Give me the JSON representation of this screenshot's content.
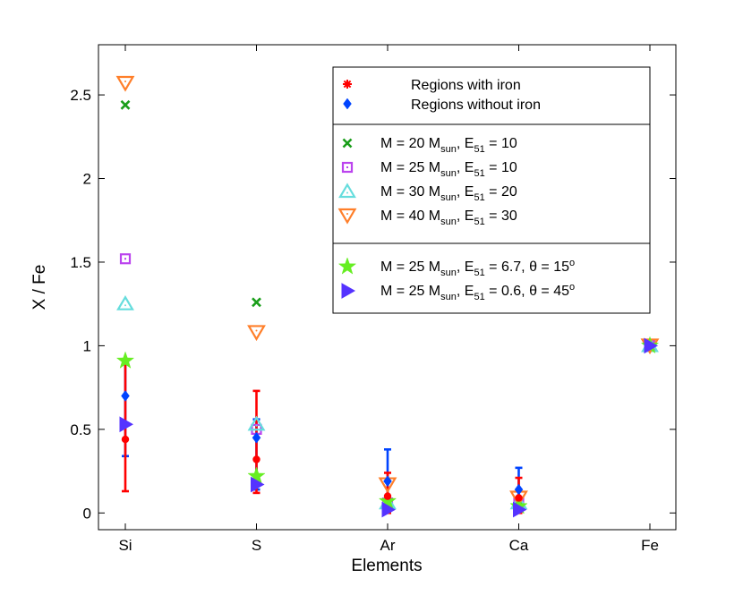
{
  "chart_data": {
    "type": "scatter",
    "title": "",
    "xlabel": "Elements",
    "ylabel": "X / Fe",
    "categories": [
      "Si",
      "S",
      "Ar",
      "Ca",
      "Fe"
    ],
    "ylim": [
      -0.1,
      2.8
    ],
    "yticks": [
      0,
      0.5,
      1,
      1.5,
      2,
      2.5
    ],
    "ytick_labels": [
      "0",
      "0.5",
      "1",
      "1.5",
      "2",
      "2.5"
    ],
    "grid": false,
    "legend_position": "top-right",
    "observations": [
      {
        "name": "Regions with iron",
        "color": "#ff0000",
        "marker": "dot",
        "points": [
          {
            "category": "Si",
            "value": 0.44,
            "low": 0.13,
            "high": 0.92
          },
          {
            "category": "S",
            "value": 0.32,
            "low": 0.12,
            "high": 0.73
          },
          {
            "category": "Ar",
            "value": 0.1,
            "low": 0.0,
            "high": 0.24
          },
          {
            "category": "Ca",
            "value": 0.09,
            "low": 0.0,
            "high": 0.21
          }
        ]
      },
      {
        "name": "Regions without iron",
        "color": "#0044ff",
        "marker": "diamond",
        "points": [
          {
            "category": "Si",
            "value": 0.7,
            "low": 0.34,
            "high": 0.92
          },
          {
            "category": "S",
            "value": 0.45,
            "low": 0.14,
            "high": 0.56
          },
          {
            "category": "Ar",
            "value": 0.19,
            "low": 0.04,
            "high": 0.38
          },
          {
            "category": "Ca",
            "value": 0.14,
            "low": 0.04,
            "high": 0.27
          }
        ]
      }
    ],
    "models": [
      {
        "name": "M = 20 M_sun, E_51 = 10",
        "color": "#1a9e1a",
        "marker": "x",
        "values": {
          "Si": 2.44,
          "S": 1.26,
          "Ar": 0.05,
          "Ca": 0.05,
          "Fe": 1.0
        }
      },
      {
        "name": "M = 25 M_sun, E_51 = 10",
        "color": "#bb44ee",
        "marker": "square",
        "values": {
          "Si": 1.52,
          "S": 0.5,
          "Ar": 0.06,
          "Ca": 0.06,
          "Fe": 1.0
        }
      },
      {
        "name": "M = 30 M_sun, E_51 = 20",
        "color": "#66dddd",
        "marker": "triangle-up",
        "values": {
          "Si": 1.25,
          "S": 0.53,
          "Ar": 0.06,
          "Ca": 0.06,
          "Fe": 1.0
        }
      },
      {
        "name": "M = 40 M_sun, E_51 = 30",
        "color": "#ff7f2a",
        "marker": "triangle-down",
        "values": {
          "Si": 2.57,
          "S": 1.08,
          "Ar": 0.17,
          "Ca": 0.09,
          "Fe": 1.0
        }
      },
      {
        "name": "M = 25 M_sun, E_51 = 6.7, θ = 15°",
        "color": "#66ee22",
        "marker": "star",
        "values": {
          "Si": 0.91,
          "S": 0.22,
          "Ar": 0.07,
          "Ca": 0.04,
          "Fe": 1.0
        }
      },
      {
        "name": "M = 25 M_sun, E_51 = 0.6, θ = 45°",
        "color": "#5533ff",
        "marker": "triangle-right",
        "values": {
          "Si": 0.53,
          "S": 0.17,
          "Ar": 0.02,
          "Ca": 0.02,
          "Fe": 1.0
        }
      }
    ],
    "legend": {
      "group1": [
        {
          "label": "Regions with iron",
          "marker": "star-dot",
          "color": "#ff0000"
        },
        {
          "label": "Regions without iron",
          "marker": "diamond",
          "color": "#0044ff"
        }
      ],
      "group2": [
        {
          "label": "M = 20 M",
          "sub": "sun",
          "label2": ", E",
          "sub2": "51",
          "label3": " = 10",
          "marker": "x",
          "color": "#1a9e1a"
        },
        {
          "label": "M = 25 M",
          "sub": "sun",
          "label2": ", E",
          "sub2": "51",
          "label3": " = 10",
          "marker": "square",
          "color": "#bb44ee"
        },
        {
          "label": "M = 30 M",
          "sub": "sun",
          "label2": ", E",
          "sub2": "51",
          "label3": " = 20",
          "marker": "triangle-up",
          "color": "#66dddd"
        },
        {
          "label": "M = 40 M",
          "sub": "sun",
          "label2": ", E",
          "sub2": "51",
          "label3": " = 30",
          "marker": "triangle-down",
          "color": "#ff7f2a"
        }
      ],
      "group3": [
        {
          "label": "M = 25 M",
          "sub": "sun",
          "label2": ", E",
          "sub2": "51",
          "label3": " = 6.7, θ = 15",
          "sup": "o",
          "marker": "star",
          "color": "#66ee22"
        },
        {
          "label": "M = 25 M",
          "sub": "sun",
          "label2": ", E",
          "sub2": "51",
          "label3": " = 0.6, θ = 45",
          "sup": "o",
          "marker": "triangle-right",
          "color": "#5533ff"
        }
      ]
    }
  }
}
